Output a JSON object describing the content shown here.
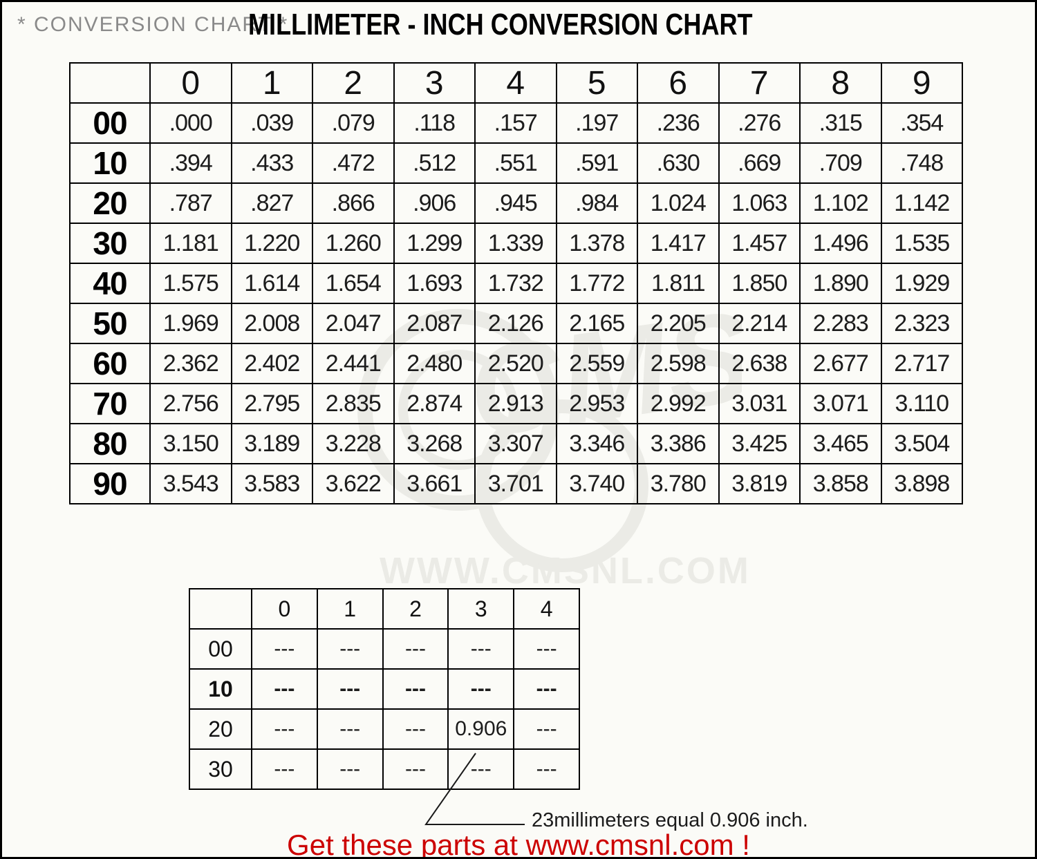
{
  "header": {
    "pre_title": "* CONVERSION CHART *",
    "title": "MILLIMETER - INCH CONVERSION CHART"
  },
  "chart_data": [
    {
      "type": "table",
      "name": "millimeter-inch-conversion-table",
      "description": "Rows are tens of millimeters, columns are units of millimeters; cell values are inches.",
      "col_headers": [
        "0",
        "1",
        "2",
        "3",
        "4",
        "5",
        "6",
        "7",
        "8",
        "9"
      ],
      "rows": [
        {
          "label": "00",
          "values": [
            ".000",
            ".039",
            ".079",
            ".118",
            ".157",
            ".197",
            ".236",
            ".276",
            ".315",
            ".354"
          ]
        },
        {
          "label": "10",
          "values": [
            ".394",
            ".433",
            ".472",
            ".512",
            ".551",
            ".591",
            ".630",
            ".669",
            ".709",
            ".748"
          ]
        },
        {
          "label": "20",
          "values": [
            ".787",
            ".827",
            ".866",
            ".906",
            ".945",
            ".984",
            "1.024",
            "1.063",
            "1.102",
            "1.142"
          ]
        },
        {
          "label": "30",
          "values": [
            "1.181",
            "1.220",
            "1.260",
            "1.299",
            "1.339",
            "1.378",
            "1.417",
            "1.457",
            "1.496",
            "1.535"
          ]
        },
        {
          "label": "40",
          "values": [
            "1.575",
            "1.614",
            "1.654",
            "1.693",
            "1.732",
            "1.772",
            "1.811",
            "1.850",
            "1.890",
            "1.929"
          ]
        },
        {
          "label": "50",
          "values": [
            "1.969",
            "2.008",
            "2.047",
            "2.087",
            "2.126",
            "2.165",
            "2.205",
            "2.214",
            "2.283",
            "2.323"
          ]
        },
        {
          "label": "60",
          "values": [
            "2.362",
            "2.402",
            "2.441",
            "2.480",
            "2.520",
            "2.559",
            "2.598",
            "2.638",
            "2.677",
            "2.717"
          ]
        },
        {
          "label": "70",
          "values": [
            "2.756",
            "2.795",
            "2.835",
            "2.874",
            "2.913",
            "2.953",
            "2.992",
            "3.031",
            "3.071",
            "3.110"
          ]
        },
        {
          "label": "80",
          "values": [
            "3.150",
            "3.189",
            "3.228",
            "3.268",
            "3.307",
            "3.346",
            "3.386",
            "3.425",
            "3.465",
            "3.504"
          ]
        },
        {
          "label": "90",
          "values": [
            "3.543",
            "3.583",
            "3.622",
            "3.661",
            "3.701",
            "3.740",
            "3.780",
            "3.819",
            "3.858",
            "3.898"
          ]
        }
      ]
    },
    {
      "type": "table",
      "name": "example-lookup-table",
      "description": "Usage example: row 20 + column 3 = 23 mm = 0.906 inch.",
      "col_headers": [
        "0",
        "1",
        "2",
        "3",
        "4"
      ],
      "rows": [
        {
          "label": "00",
          "values": [
            "---",
            "---",
            "---",
            "---",
            "---"
          ],
          "bold": false
        },
        {
          "label": "10",
          "values": [
            "---",
            "---",
            "---",
            "---",
            "---"
          ],
          "bold": true
        },
        {
          "label": "20",
          "values": [
            "---",
            "---",
            "---",
            "0.906",
            "---"
          ],
          "bold": false
        },
        {
          "label": "30",
          "values": [
            "---",
            "---",
            "---",
            "---",
            "---"
          ],
          "bold": false
        }
      ]
    }
  ],
  "annotation": {
    "leader_text": "23millimeters equal 0.906 inch."
  },
  "footer": {
    "text": "Get these parts at www.cmsnl.com !",
    "color": "#cc0000"
  },
  "watermark": {
    "logo_text": "CMS",
    "url_text": "WWW.CMSNL.COM",
    "color": "#ebebe6"
  }
}
